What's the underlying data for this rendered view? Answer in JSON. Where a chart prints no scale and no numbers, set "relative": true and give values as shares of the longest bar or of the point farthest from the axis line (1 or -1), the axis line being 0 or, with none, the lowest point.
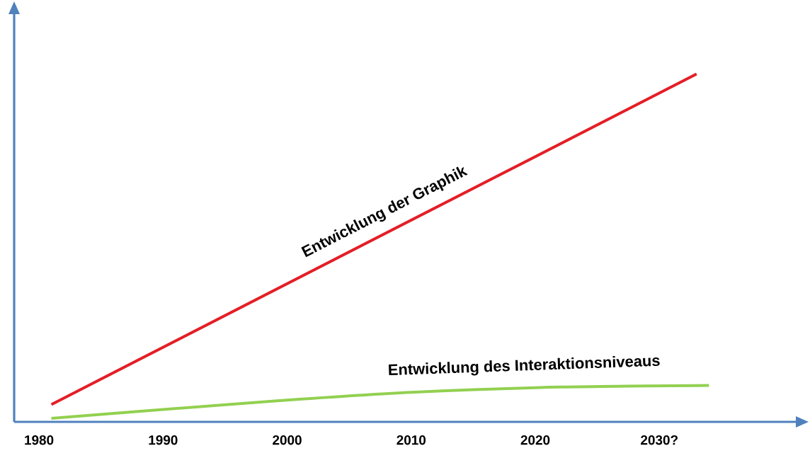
{
  "chart_data": {
    "type": "line",
    "relative": true,
    "grid": false,
    "xlim": [
      1978,
      2041
    ],
    "xticks": [
      1980,
      1990,
      2000,
      2010,
      2020,
      {
        "value": 2030,
        "label": "2030?"
      }
    ],
    "series": [
      {
        "name": "Entwicklung der Graphik",
        "color": "#e41e26",
        "x": [
          1981,
          2033
        ],
        "values": [
          0.05,
          1
        ]
      },
      {
        "name": "Entwicklung des Interaktionsniveaus",
        "color": "#92d050",
        "x": [
          1981,
          1988,
          1999,
          2010,
          2022,
          2034
        ],
        "values": [
          0.01,
          0.03,
          0.06,
          0.085,
          0.1,
          0.105
        ]
      }
    ]
  }
}
